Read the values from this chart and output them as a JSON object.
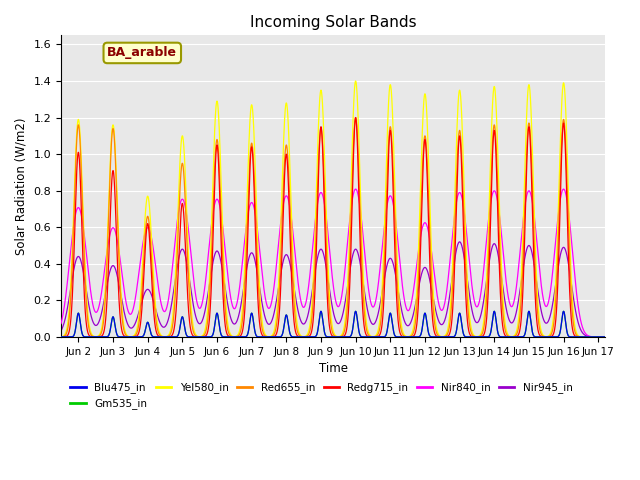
{
  "title": "Incoming Solar Bands",
  "xlabel": "Time",
  "ylabel": "Solar Radiation (W/m2)",
  "annotation": "BA_arable",
  "ylim": [
    0,
    1.65
  ],
  "xlim_days": [
    1.5,
    17.2
  ],
  "x_tick_labels": [
    "Jun 2",
    "Jun 3",
    "Jun 4",
    "Jun 5",
    "Jun 6",
    "Jun 7",
    "Jun 8",
    "Jun 9",
    "Jun 10",
    "Jun 11",
    "Jun 12",
    "Jun 13",
    "Jun 14",
    "Jun 15",
    "Jun 16",
    "Jun 17"
  ],
  "x_tick_positions": [
    2,
    3,
    4,
    5,
    6,
    7,
    8,
    9,
    10,
    11,
    12,
    13,
    14,
    15,
    16,
    17
  ],
  "series_colors": {
    "Blu475_in": "#0000ee",
    "Gm535_in": "#00cc00",
    "Yel580_in": "#ffff00",
    "Red655_in": "#ff8800",
    "Redg715_in": "#ff0000",
    "Nir840_in": "#ff00ff",
    "Nir945_in": "#9900cc"
  },
  "day_peaks": [
    {
      "day": 2,
      "peak_yel": 1.19,
      "peak_red": 1.16,
      "peak_redg": 1.01,
      "peak_nir840": 0.77,
      "peak_nir945": 0.44,
      "peak_blu": 0.13,
      "peak_grn": 0.13
    },
    {
      "day": 3,
      "peak_yel": 1.16,
      "peak_red": 1.14,
      "peak_redg": 0.91,
      "peak_nir840": 0.65,
      "peak_nir945": 0.39,
      "peak_blu": 0.11,
      "peak_grn": 0.11
    },
    {
      "day": 4,
      "peak_yel": 0.77,
      "peak_red": 0.66,
      "peak_redg": 0.62,
      "peak_nir840": 0.65,
      "peak_nir945": 0.26,
      "peak_blu": 0.08,
      "peak_grn": 0.08
    },
    {
      "day": 5,
      "peak_yel": 1.1,
      "peak_red": 0.95,
      "peak_redg": 0.73,
      "peak_nir840": 0.82,
      "peak_nir945": 0.48,
      "peak_blu": 0.11,
      "peak_grn": 0.11
    },
    {
      "day": 6,
      "peak_yel": 1.29,
      "peak_red": 1.08,
      "peak_redg": 1.05,
      "peak_nir840": 0.82,
      "peak_nir945": 0.47,
      "peak_blu": 0.13,
      "peak_grn": 0.13
    },
    {
      "day": 7,
      "peak_yel": 1.27,
      "peak_red": 1.06,
      "peak_redg": 1.04,
      "peak_nir840": 0.8,
      "peak_nir945": 0.46,
      "peak_blu": 0.13,
      "peak_grn": 0.13
    },
    {
      "day": 8,
      "peak_yel": 1.28,
      "peak_red": 1.05,
      "peak_redg": 1.0,
      "peak_nir840": 0.84,
      "peak_nir945": 0.45,
      "peak_blu": 0.12,
      "peak_grn": 0.12
    },
    {
      "day": 9,
      "peak_yel": 1.35,
      "peak_red": 1.14,
      "peak_redg": 1.15,
      "peak_nir840": 0.86,
      "peak_nir945": 0.48,
      "peak_blu": 0.14,
      "peak_grn": 0.14
    },
    {
      "day": 10,
      "peak_yel": 1.4,
      "peak_red": 1.2,
      "peak_redg": 1.2,
      "peak_nir840": 0.88,
      "peak_nir945": 0.48,
      "peak_blu": 0.14,
      "peak_grn": 0.14
    },
    {
      "day": 11,
      "peak_yel": 1.38,
      "peak_red": 1.15,
      "peak_redg": 1.13,
      "peak_nir840": 0.84,
      "peak_nir945": 0.43,
      "peak_blu": 0.13,
      "peak_grn": 0.13
    },
    {
      "day": 12,
      "peak_yel": 1.33,
      "peak_red": 1.1,
      "peak_redg": 1.08,
      "peak_nir840": 0.68,
      "peak_nir945": 0.38,
      "peak_blu": 0.13,
      "peak_grn": 0.13
    },
    {
      "day": 13,
      "peak_yel": 1.35,
      "peak_red": 1.13,
      "peak_redg": 1.1,
      "peak_nir840": 0.86,
      "peak_nir945": 0.52,
      "peak_blu": 0.13,
      "peak_grn": 0.13
    },
    {
      "day": 14,
      "peak_yel": 1.37,
      "peak_red": 1.16,
      "peak_redg": 1.13,
      "peak_nir840": 0.87,
      "peak_nir945": 0.51,
      "peak_blu": 0.14,
      "peak_grn": 0.14
    },
    {
      "day": 15,
      "peak_yel": 1.38,
      "peak_red": 1.17,
      "peak_redg": 1.15,
      "peak_nir840": 0.87,
      "peak_nir945": 0.5,
      "peak_blu": 0.14,
      "peak_grn": 0.14
    },
    {
      "day": 16,
      "peak_yel": 1.39,
      "peak_red": 1.19,
      "peak_redg": 1.17,
      "peak_nir840": 0.88,
      "peak_nir945": 0.49,
      "peak_blu": 0.14,
      "peak_grn": 0.14
    }
  ],
  "bg_color": "#e8e8e8",
  "fig_color": "#ffffff",
  "bell_widths": {
    "yel": 0.13,
    "red": 0.12,
    "redg": 0.1,
    "nir840_narrow": 0.06,
    "nir840_wide": 0.2,
    "nir945": 0.22,
    "blu": 0.055,
    "grn": 0.055
  }
}
